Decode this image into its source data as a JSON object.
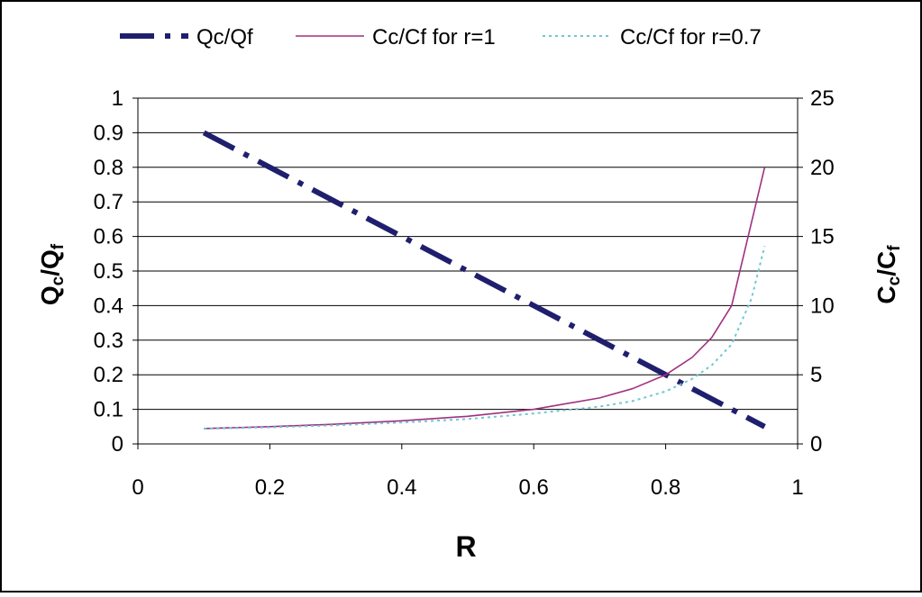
{
  "chart_data": {
    "type": "line",
    "xlabel": "R",
    "ylabel_left": {
      "base": "Q",
      "sub1": "c",
      "sep": "/Q",
      "sub2": "f"
    },
    "ylabel_right": {
      "base": "C",
      "sub1": "c",
      "sep": "/C",
      "sub2": "f"
    },
    "xlim": [
      0,
      1
    ],
    "xticks": [
      "0",
      "0.2",
      "0.4",
      "0.6",
      "0.8",
      "1"
    ],
    "ylim_left": [
      0,
      1
    ],
    "yticks_left": [
      "0",
      "0.1",
      "0.2",
      "0.3",
      "0.4",
      "0.5",
      "0.6",
      "0.7",
      "0.8",
      "0.9",
      "1"
    ],
    "ylim_right": [
      0,
      25
    ],
    "yticks_right": [
      "0",
      "5",
      "10",
      "15",
      "20",
      "25"
    ],
    "grid": "horizontal",
    "legend_position": "top",
    "series": [
      {
        "name": "Qc/Qf",
        "axis": "left",
        "style": "dash-dot",
        "color": "#1f1f6e",
        "x": [
          0.1,
          0.2,
          0.3,
          0.4,
          0.5,
          0.6,
          0.7,
          0.8,
          0.85,
          0.9,
          0.95
        ],
        "y": [
          0.9,
          0.8,
          0.7,
          0.6,
          0.5,
          0.4,
          0.3,
          0.2,
          0.15,
          0.1,
          0.05
        ]
      },
      {
        "name": "Cc/Cf for r=1",
        "axis": "right",
        "style": "solid",
        "color": "#a0307f",
        "x": [
          0.1,
          0.2,
          0.3,
          0.4,
          0.5,
          0.6,
          0.7,
          0.75,
          0.8,
          0.84,
          0.87,
          0.9,
          0.95
        ],
        "y": [
          1.11,
          1.25,
          1.43,
          1.67,
          2.0,
          2.5,
          3.33,
          4.0,
          5.0,
          6.25,
          7.7,
          10.0,
          20.0
        ]
      },
      {
        "name": "Cc/Cf for r=0.7",
        "axis": "right",
        "style": "dotted",
        "color": "#6fc7d3",
        "x": [
          0.1,
          0.2,
          0.3,
          0.4,
          0.5,
          0.6,
          0.7,
          0.75,
          0.8,
          0.84,
          0.87,
          0.9,
          0.93,
          0.95
        ],
        "y": [
          1.1,
          1.2,
          1.35,
          1.55,
          1.8,
          2.2,
          2.7,
          3.1,
          3.8,
          4.7,
          5.7,
          7.2,
          10.5,
          14.3
        ]
      }
    ]
  }
}
